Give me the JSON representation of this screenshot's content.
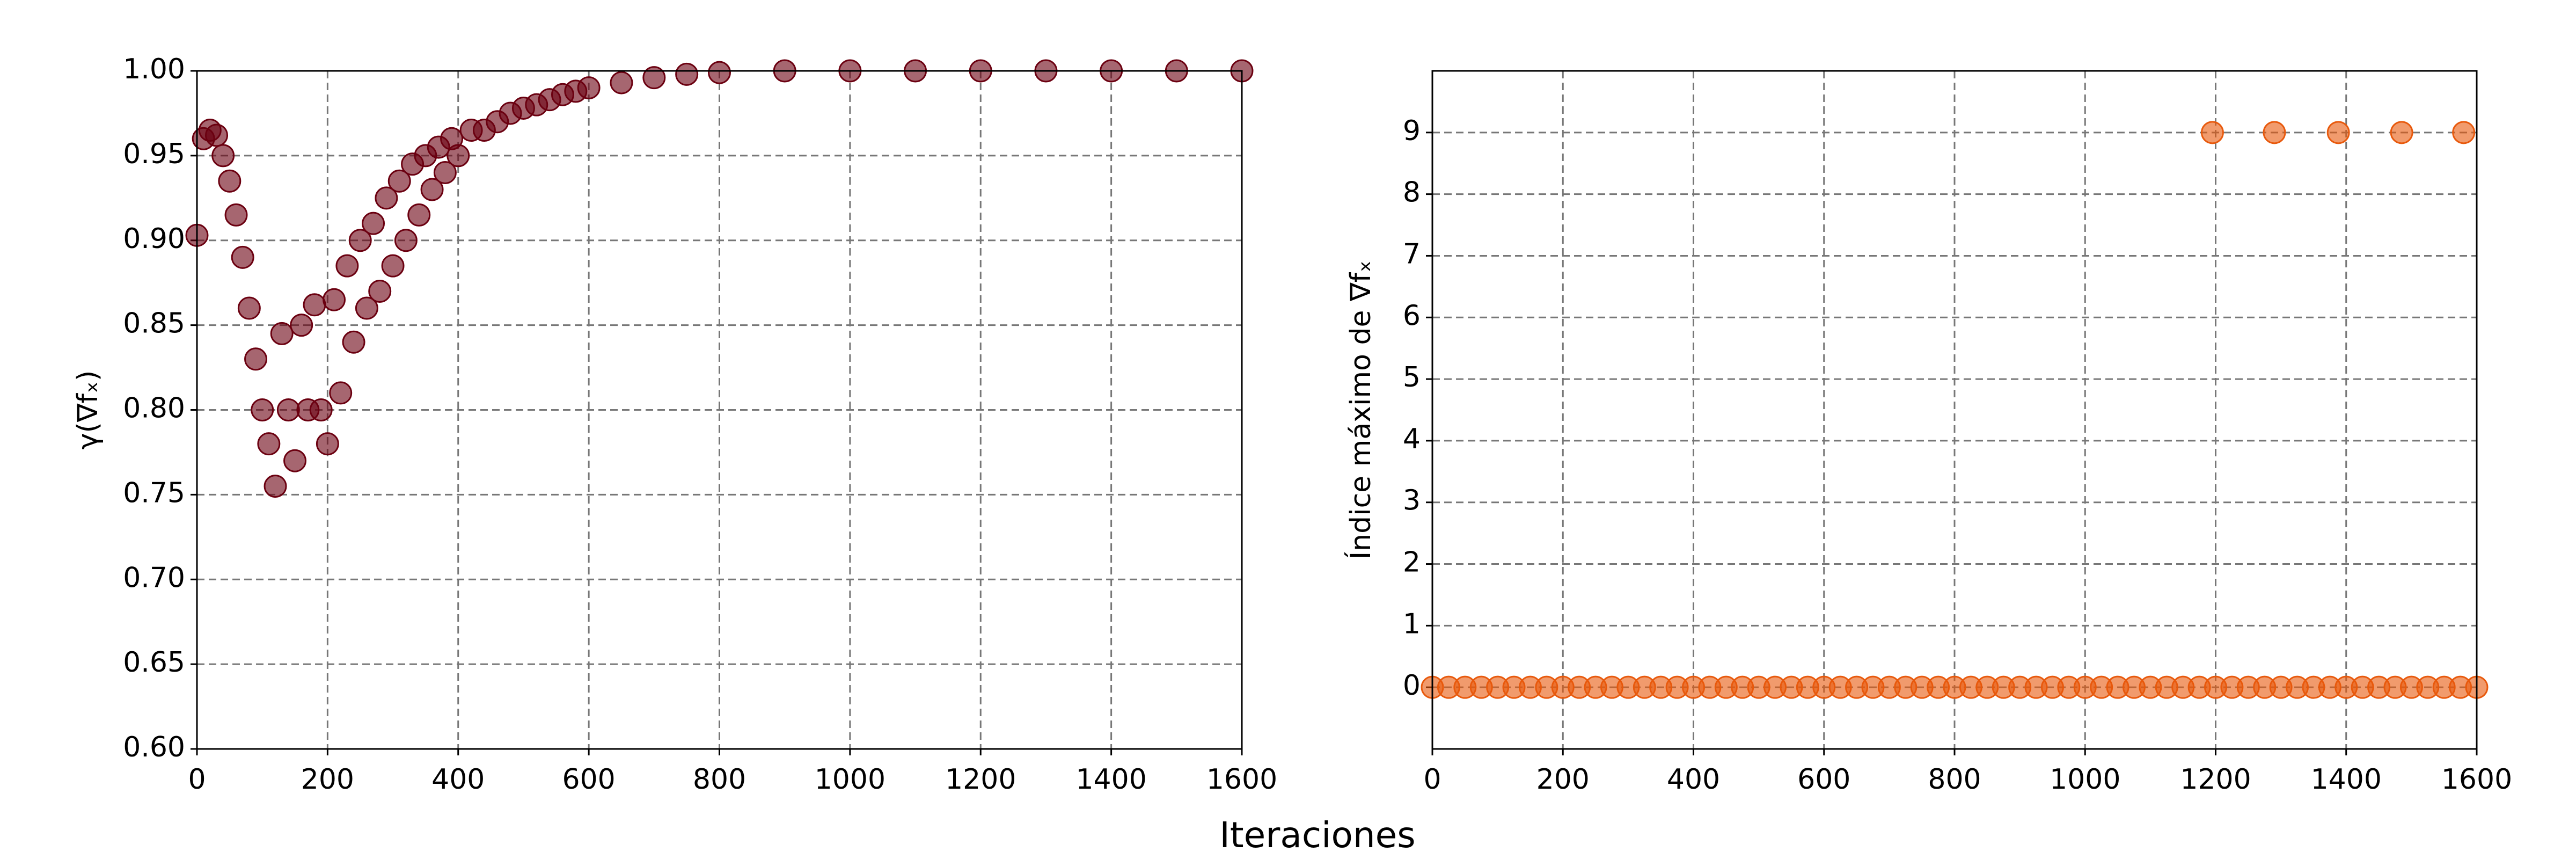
{
  "chart_data": [
    {
      "type": "scatter",
      "ylabel": "γ(∇fₓ)",
      "color": "#6b0010",
      "grid": true,
      "x": [
        0,
        10,
        20,
        30,
        40,
        50,
        60,
        70,
        80,
        90,
        100,
        110,
        120,
        130,
        140,
        150,
        160,
        170,
        180,
        190,
        200,
        210,
        220,
        230,
        240,
        250,
        260,
        270,
        280,
        290,
        300,
        310,
        320,
        330,
        340,
        350,
        360,
        370,
        380,
        390,
        400,
        420,
        440,
        460,
        480,
        500,
        520,
        540,
        560,
        580,
        600,
        650,
        700,
        750,
        800,
        900,
        1000,
        1100,
        1200,
        1300,
        1400,
        1500,
        1600
      ],
      "values": [
        0.903,
        0.96,
        0.965,
        0.962,
        0.95,
        0.935,
        0.915,
        0.89,
        0.86,
        0.83,
        0.8,
        0.78,
        0.755,
        0.845,
        0.8,
        0.77,
        0.85,
        0.8,
        0.862,
        0.8,
        0.78,
        0.865,
        0.81,
        0.885,
        0.84,
        0.9,
        0.86,
        0.91,
        0.87,
        0.925,
        0.885,
        0.935,
        0.9,
        0.945,
        0.915,
        0.95,
        0.93,
        0.955,
        0.94,
        0.96,
        0.95,
        0.965,
        0.965,
        0.97,
        0.975,
        0.978,
        0.98,
        0.983,
        0.986,
        0.988,
        0.99,
        0.993,
        0.996,
        0.998,
        0.999,
        1.0,
        1.0,
        1.0,
        1.0,
        1.0,
        1.0,
        1.0,
        1.0
      ],
      "xlim": [
        0,
        1600
      ],
      "xticks": [
        0,
        200,
        400,
        600,
        800,
        1000,
        1200,
        1400,
        1600
      ],
      "ylim": [
        0.6,
        1.0
      ],
      "yticks": [
        {
          "value": 0.6,
          "label": "0.60"
        },
        {
          "value": 0.65,
          "label": "0.65"
        },
        {
          "value": 0.7,
          "label": "0.70"
        },
        {
          "value": 0.75,
          "label": "0.75"
        },
        {
          "value": 0.8,
          "label": "0.80"
        },
        {
          "value": 0.85,
          "label": "0.85"
        },
        {
          "value": 0.9,
          "label": "0.90"
        },
        {
          "value": 0.95,
          "label": "0.95"
        },
        {
          "value": 1.0,
          "label": "1.00"
        }
      ]
    },
    {
      "type": "scatter",
      "ylabel": "Índice máximo de ∇fₓ",
      "color": "#e8590c",
      "grid": true,
      "x": [
        0,
        25,
        50,
        75,
        100,
        125,
        150,
        175,
        200,
        225,
        250,
        275,
        300,
        325,
        350,
        375,
        400,
        425,
        450,
        475,
        500,
        525,
        550,
        575,
        600,
        625,
        650,
        675,
        700,
        725,
        750,
        775,
        800,
        825,
        850,
        875,
        900,
        925,
        950,
        975,
        1000,
        1025,
        1050,
        1075,
        1100,
        1125,
        1150,
        1175,
        1200,
        1225,
        1250,
        1275,
        1300,
        1325,
        1350,
        1375,
        1400,
        1425,
        1450,
        1475,
        1500,
        1525,
        1550,
        1575,
        1600,
        1195,
        1290,
        1388,
        1485,
        1580
      ],
      "values": [
        0,
        0,
        0,
        0,
        0,
        0,
        0,
        0,
        0,
        0,
        0,
        0,
        0,
        0,
        0,
        0,
        0,
        0,
        0,
        0,
        0,
        0,
        0,
        0,
        0,
        0,
        0,
        0,
        0,
        0,
        0,
        0,
        0,
        0,
        0,
        0,
        0,
        0,
        0,
        0,
        0,
        0,
        0,
        0,
        0,
        0,
        0,
        0,
        0,
        0,
        0,
        0,
        0,
        0,
        0,
        0,
        0,
        0,
        0,
        0,
        0,
        0,
        0,
        0,
        0,
        9,
        9,
        9,
        9,
        9
      ],
      "xlim": [
        0,
        1600
      ],
      "xticks": [
        0,
        200,
        400,
        600,
        800,
        1000,
        1200,
        1400,
        1600
      ],
      "ylim": [
        -1,
        10
      ],
      "yticks": [
        0,
        1,
        2,
        3,
        4,
        5,
        6,
        7,
        8,
        9
      ]
    }
  ],
  "xlabel": "Iteraciones"
}
